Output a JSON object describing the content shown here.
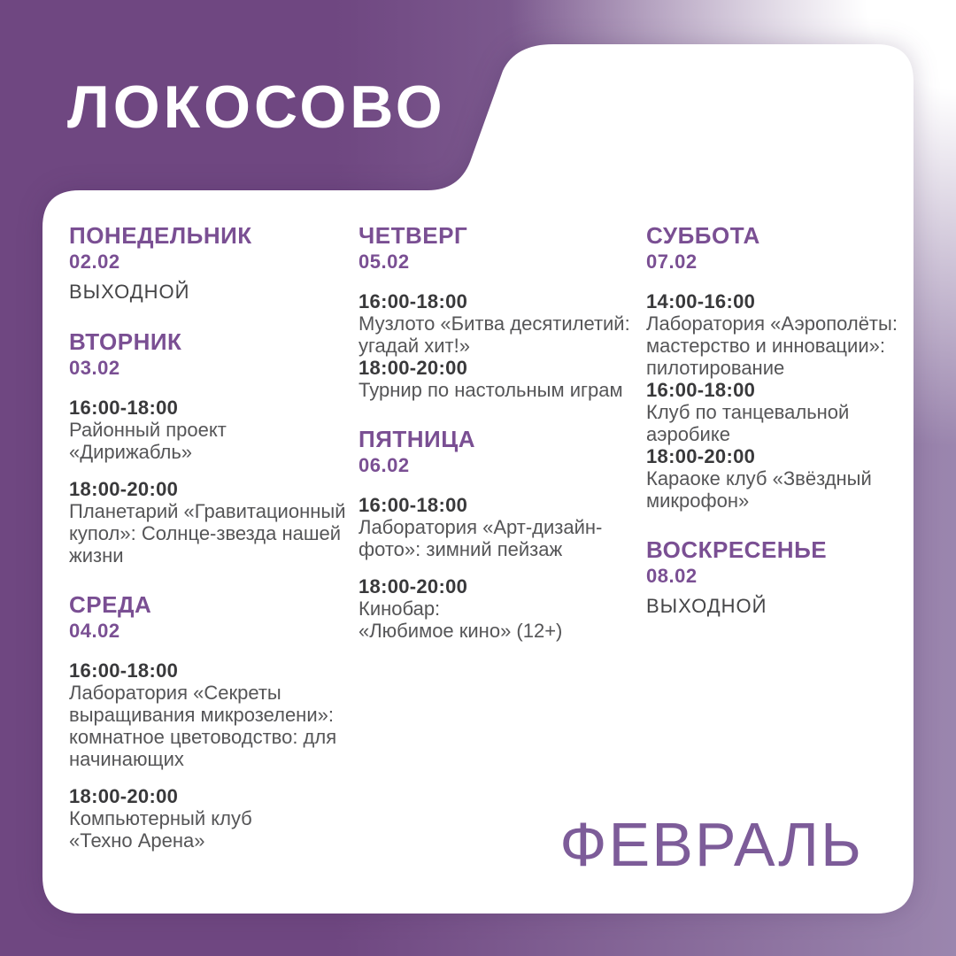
{
  "poster": {
    "title": "ЛОКОСОВО",
    "month": "ФЕВРАЛЬ",
    "colors": {
      "bg_dark": "#6f4781",
      "bg_light": "#9b86ae",
      "card": "#ffffff",
      "accent": "#7a4f93",
      "month": "#7d5c99",
      "time": "#39393b",
      "text": "#555557",
      "status": "#454547"
    },
    "columns": [
      {
        "days": [
          {
            "name": "ПОНЕДЕЛЬНИК",
            "date": "02.02",
            "status": "ВЫХОДНОЙ",
            "events": []
          },
          {
            "name": "ВТОРНИК",
            "date": "03.02",
            "events": [
              {
                "time": "16:00-18:00",
                "title": "Районный проект\n«Дирижабль»",
                "gap": true
              },
              {
                "time": "18:00-20:00",
                "title": "Планетарий «Гравитационный\nкупол»: Солнце-звезда нашей\nжизни",
                "gap": true
              }
            ]
          },
          {
            "name": "СРЕДА",
            "date": "04.02",
            "events": [
              {
                "time": "16:00-18:00",
                "title": "Лаборатория «Секреты\nвыращивания микрозелени»:\nкомнатное цветоводство: для\nначинающих",
                "gap": true
              },
              {
                "time": "18:00-20:00",
                "title": "Компьютерный клуб\n«Техно Арена»",
                "gap": true
              }
            ]
          }
        ]
      },
      {
        "days": [
          {
            "name": "ЧЕТВЕРГ",
            "date": "05.02",
            "events": [
              {
                "time": "16:00-18:00",
                "title": "Музлото «Битва десятилетий:\nугадай хит!»",
                "gap": true
              },
              {
                "time": "18:00-20:00",
                "title": "Турнир по настольным играм",
                "gap": false
              }
            ]
          },
          {
            "name": "ПЯТНИЦА",
            "date": "06.02",
            "events": [
              {
                "time": "16:00-18:00",
                "title": "Лаборатория «Арт-дизайн-\nфото»: зимний пейзаж",
                "gap": true
              },
              {
                "time": "18:00-20:00",
                "title": "Кинобар:\n«Любимое кино» (12+)",
                "gap": true
              }
            ]
          }
        ]
      },
      {
        "days": [
          {
            "name": "СУББОТА",
            "date": "07.02",
            "events": [
              {
                "time": "14:00-16:00",
                "title": "Лаборатория «Аэрополёты:\nмастерство и инновации»:\nпилотирование",
                "gap": true
              },
              {
                "time": "16:00-18:00",
                "title": "Клуб по танцевальной\nаэробике",
                "gap": false
              },
              {
                "time": "18:00-20:00",
                "title": "Караоке клуб «Звёздный\nмикрофон»",
                "gap": false
              }
            ]
          },
          {
            "name": "ВОСКРЕСЕНЬЕ",
            "date": "08.02",
            "status": "ВЫХОДНОЙ",
            "events": []
          }
        ]
      }
    ]
  }
}
